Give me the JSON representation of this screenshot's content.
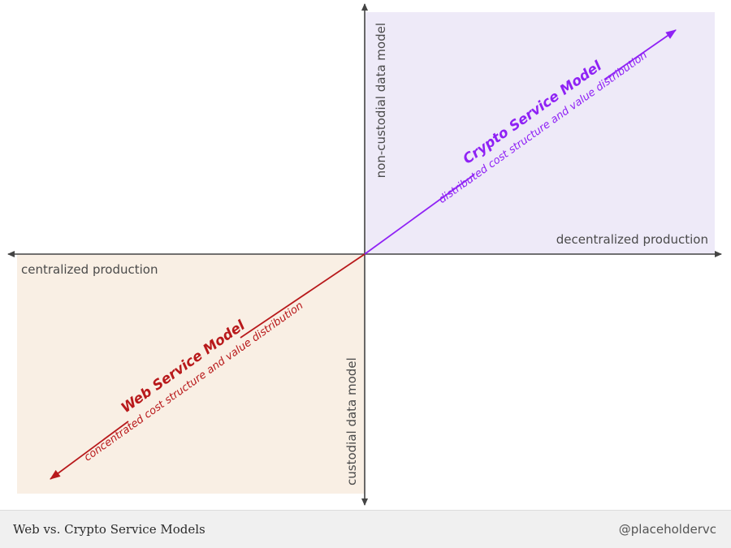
{
  "colors": {
    "crypto": "#8f22f5",
    "web": "#b8191b",
    "crypto_quadrant_fill": "#eeeaf8",
    "web_quadrant_fill": "#f9efe4",
    "axis": "#444444"
  },
  "axes": {
    "top_label": "non-custodial data model",
    "bottom_label": "custodial data model",
    "left_label": "centralized production",
    "right_label": "decentralized production"
  },
  "crypto_model": {
    "title": "Crypto Service Model",
    "subtitle": "distributed cost structure and value distribution"
  },
  "web_model": {
    "title": "Web Service Model",
    "subtitle": "concentrated cost structure and value distribution"
  },
  "footer": {
    "title": "Web vs. Crypto Service Models",
    "handle": "@placeholdervc"
  }
}
